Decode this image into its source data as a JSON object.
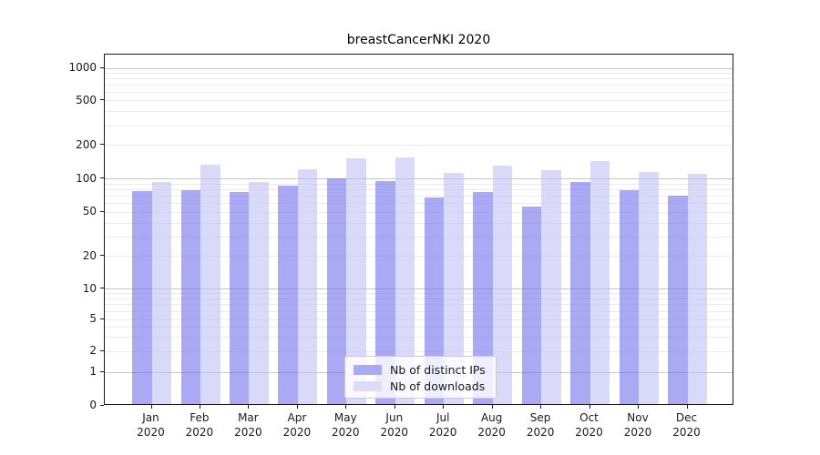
{
  "chart_data": {
    "type": "bar",
    "title": "breastCancerNKI 2020",
    "categories": [
      "Jan",
      "Feb",
      "Mar",
      "Apr",
      "May",
      "Jun",
      "Jul",
      "Aug",
      "Sep",
      "Oct",
      "Nov",
      "Dec"
    ],
    "category_year": "2020",
    "series": [
      {
        "name": "Nb of distinct IPs",
        "color": "#a9a9f4",
        "fill": "rgba(112,112,237,0.6)",
        "values": [
          75,
          76,
          73,
          84,
          97,
          92,
          65,
          74,
          54,
          90,
          76,
          68
        ]
      },
      {
        "name": "Nb of downloads",
        "color": "#dcdcf8",
        "fill": "rgba(192,192,245,0.6)",
        "values": [
          90,
          130,
          90,
          118,
          149,
          150,
          110,
          127,
          116,
          140,
          111,
          108
        ]
      }
    ],
    "ylabel": "",
    "xlabel": "",
    "yscale": "log-like (0,1,2,5 ... 1000)",
    "ylim": [
      0,
      1330
    ],
    "yticks": [
      0,
      1,
      2,
      5,
      10,
      20,
      50,
      100,
      200,
      500,
      1000
    ],
    "grid": "horizontal, major + minor",
    "legend_position": "lower center",
    "layout": {
      "ytick_fracs": [
        [
          0,
          0.0
        ],
        [
          1,
          0.095
        ],
        [
          2,
          0.155
        ],
        [
          5,
          0.246
        ],
        [
          10,
          0.332
        ],
        [
          20,
          0.426
        ],
        [
          50,
          0.551
        ],
        [
          100,
          0.646
        ],
        [
          200,
          0.741
        ],
        [
          500,
          0.868
        ],
        [
          1000,
          0.961
        ]
      ],
      "decade_frac": 0.3147,
      "first_center": 51.5,
      "spacing": 53.45,
      "bar_width": 21.5
    }
  }
}
